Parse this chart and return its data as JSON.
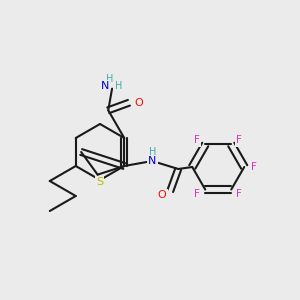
{
  "bg_color": "#ebebeb",
  "bond_color": "#1a1a1a",
  "bond_width": 1.5,
  "atoms": {
    "S": {
      "color": "#b8b800"
    },
    "O": {
      "color": "#ee1100"
    },
    "N": {
      "color": "#0000cc"
    },
    "H": {
      "color": "#44aaaa"
    },
    "F": {
      "color": "#dd33bb"
    },
    "C": {
      "color": "#1a1a1a"
    }
  }
}
